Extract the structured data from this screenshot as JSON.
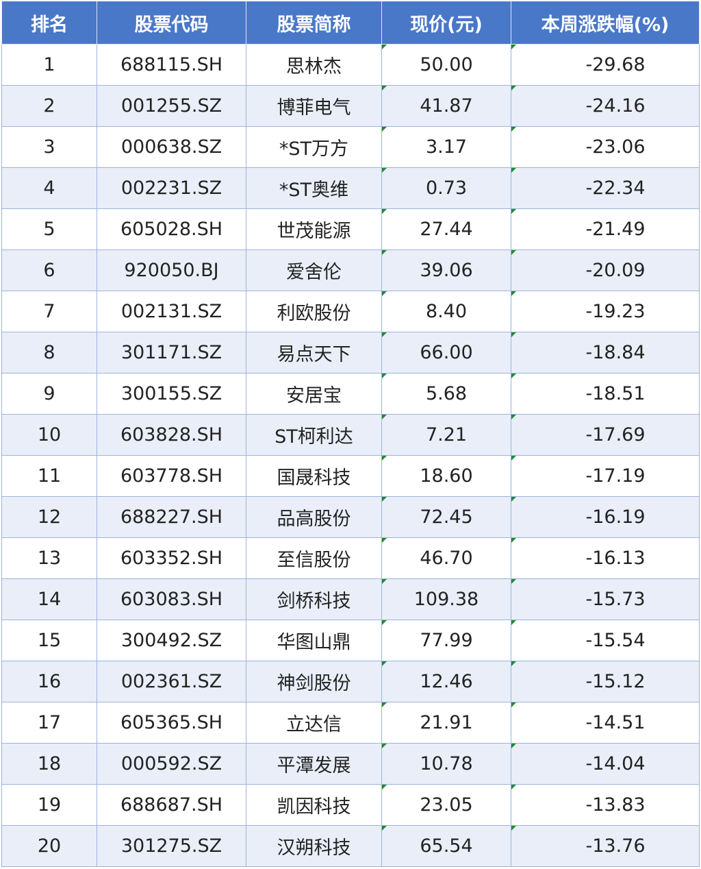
{
  "table": {
    "headers": [
      "排名",
      "股票代码",
      "股票简称",
      "现价(元)",
      "本周涨跌幅(%)"
    ],
    "rows": [
      [
        "1",
        "688115.SH",
        "思林杰",
        "50.00",
        "-29.68"
      ],
      [
        "2",
        "001255.SZ",
        "博菲电气",
        "41.87",
        "-24.16"
      ],
      [
        "3",
        "000638.SZ",
        "*ST万方",
        "3.17",
        "-23.06"
      ],
      [
        "4",
        "002231.SZ",
        "*ST奥维",
        "0.73",
        "-22.34"
      ],
      [
        "5",
        "605028.SH",
        "世茂能源",
        "27.44",
        "-21.49"
      ],
      [
        "6",
        "920050.BJ",
        "爱舍伦",
        "39.06",
        "-20.09"
      ],
      [
        "7",
        "002131.SZ",
        "利欧股份",
        "8.40",
        "-19.23"
      ],
      [
        "8",
        "301171.SZ",
        "易点天下",
        "66.00",
        "-18.84"
      ],
      [
        "9",
        "300155.SZ",
        "安居宝",
        "5.68",
        "-18.51"
      ],
      [
        "10",
        "603828.SH",
        "ST柯利达",
        "7.21",
        "-17.69"
      ],
      [
        "11",
        "603778.SH",
        "国晟科技",
        "18.60",
        "-17.19"
      ],
      [
        "12",
        "688227.SH",
        "品高股份",
        "72.45",
        "-16.19"
      ],
      [
        "13",
        "603352.SH",
        "至信股份",
        "46.70",
        "-16.13"
      ],
      [
        "14",
        "603083.SH",
        "剑桥科技",
        "109.38",
        "-15.73"
      ],
      [
        "15",
        "300492.SZ",
        "华图山鼎",
        "77.99",
        "-15.54"
      ],
      [
        "16",
        "002361.SZ",
        "神剑股份",
        "12.46",
        "-15.12"
      ],
      [
        "17",
        "605365.SH",
        "立达信",
        "21.91",
        "-14.51"
      ],
      [
        "18",
        "000592.SZ",
        "平潭发展",
        "10.78",
        "-14.04"
      ],
      [
        "19",
        "688687.SH",
        "凯因科技",
        "23.05",
        "-13.83"
      ],
      [
        "20",
        "301275.SZ",
        "汉朔科技",
        "65.54",
        "-13.76"
      ]
    ]
  },
  "colors": {
    "header_bg": "#4a78c8",
    "alt_row_bg": "#e9eef8",
    "cell_marker": "#1f8a3a"
  }
}
